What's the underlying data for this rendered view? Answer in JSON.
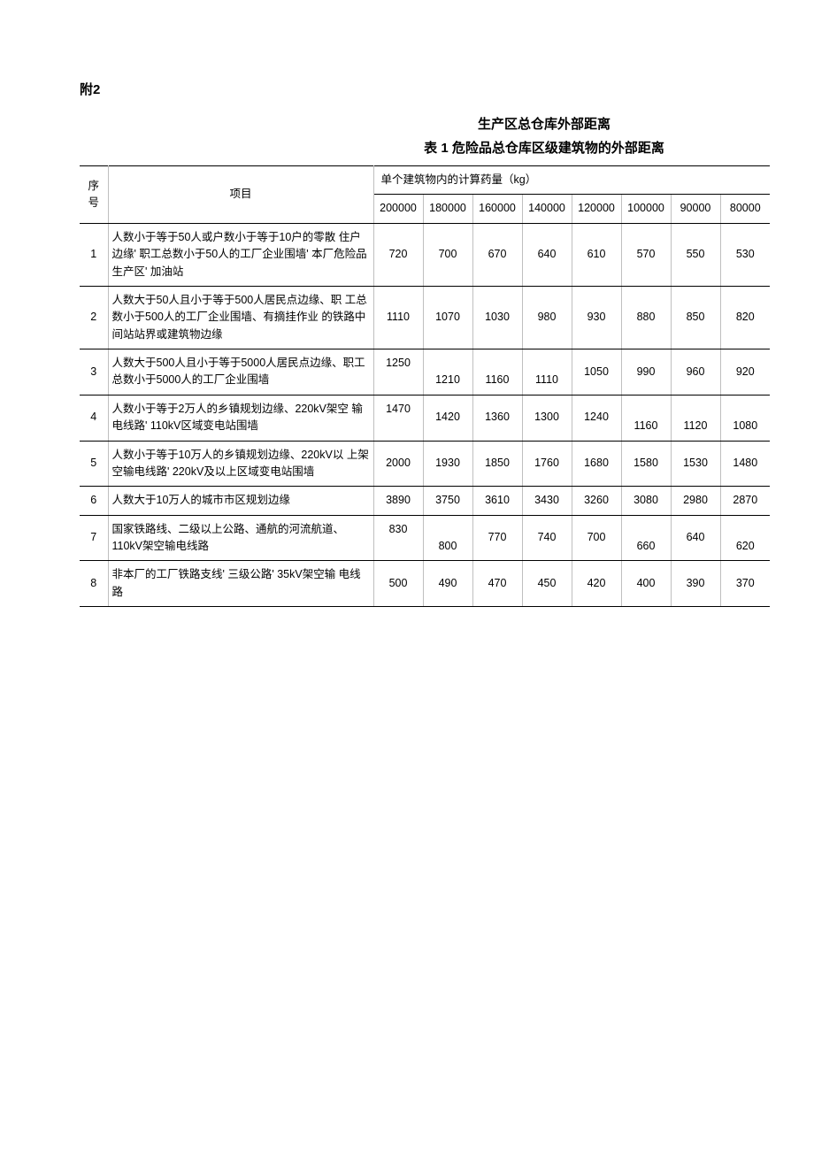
{
  "appendix_label": "附2",
  "title": "生产区总仓库外部距离",
  "table_caption": "表 1 危险品总仓库区级建筑物的外部距离",
  "header": {
    "col_num": "序 号",
    "col_item": "项目",
    "col_group": "单个建筑物内的计算药量（kg）",
    "weights": [
      "200000",
      "180000",
      "160000",
      "140000",
      "120000",
      "100000",
      "90000",
      "80000"
    ]
  },
  "rows": [
    {
      "num": "1",
      "desc": "人数小于等于50人或户数小于等于10户的零散  住户边缘'  职工总数小于50人的工厂企业围墙'  本厂危险品生产区'  加油站",
      "values": [
        "720",
        "700",
        "670",
        "640",
        "610",
        "570",
        "550",
        "530"
      ],
      "align": [
        "mid",
        "mid",
        "mid",
        "mid",
        "mid",
        "mid",
        "mid",
        "mid"
      ]
    },
    {
      "num": "2",
      "desc": "人数大于50人且小于等于500人居民点边缘、职  工总数小于500人的工厂企业围墙、有摘挂作业  的铁路中间站站界或建筑物边缘",
      "values": [
        "1110",
        "1070",
        "1030",
        "980",
        "930",
        "880",
        "850",
        "820"
      ],
      "align": [
        "mid",
        "mid",
        "mid",
        "mid",
        "mid",
        "mid",
        "mid",
        "mid"
      ]
    },
    {
      "num": "3",
      "desc": "人数大于500人且小于等于5000人居民点边缘、职工总数小于5000人的工厂企业围墙",
      "values": [
        "1250",
        "1210",
        "1160",
        "1110",
        "1050",
        "990",
        "960",
        "920"
      ],
      "align": [
        "top",
        "bottom",
        "bottom",
        "bottom",
        "mid",
        "mid",
        "mid",
        "mid"
      ]
    },
    {
      "num": "4",
      "desc": "人数小于等于2万人的乡镇规划边缘、220kV架空  输电线路'  110kV区域变电站围墙",
      "values": [
        "1470",
        "1420",
        "1360",
        "1300",
        "1240",
        "1160",
        "1120",
        "1080"
      ],
      "align": [
        "top",
        "mid",
        "mid",
        "mid",
        "mid",
        "bottom",
        "bottom",
        "bottom"
      ]
    },
    {
      "num": "5",
      "desc": "人数小于等于10万人的乡镇规划边缘、220kV以  上架空输电线路'  220kV及以上区域变电站围墙",
      "values": [
        "2000",
        "1930",
        "1850",
        "1760",
        "1680",
        "1580",
        "1530",
        "1480"
      ],
      "align": [
        "mid",
        "mid",
        "mid",
        "mid",
        "mid",
        "mid",
        "mid",
        "mid"
      ]
    },
    {
      "num": "6",
      "desc": "人数大于10万人的城市市区规划边缘",
      "values": [
        "3890",
        "3750",
        "3610",
        "3430",
        "3260",
        "3080",
        "2980",
        "2870"
      ],
      "align": [
        "mid",
        "mid",
        "mid",
        "mid",
        "mid",
        "mid",
        "mid",
        "mid"
      ]
    },
    {
      "num": "7",
      "desc": "国家铁路线、二级以上公路、通航的河流航道、110kV架空输电线路",
      "values": [
        "830",
        "800",
        "770",
        "740",
        "700",
        "660",
        "640",
        "620"
      ],
      "align": [
        "top",
        "bottom",
        "mid",
        "mid",
        "mid",
        "bottom",
        "mid",
        "bottom"
      ]
    },
    {
      "num": "8",
      "desc": "非本厂的工厂铁路支线' 三级公路'  35kV架空输  电线路",
      "values": [
        "500",
        "490",
        "470",
        "450",
        "420",
        "400",
        "390",
        "370"
      ],
      "align": [
        "mid",
        "mid",
        "mid",
        "mid",
        "mid",
        "mid",
        "mid",
        "mid"
      ]
    }
  ],
  "style": {
    "background_color": "#ffffff",
    "text_color": "#000000",
    "grid_color_light": "#bfbfbf",
    "grid_color_heavy": "#000000",
    "base_fontsize": 13,
    "title_fontsize": 15,
    "font_family": "Microsoft YaHei / SimSun"
  }
}
